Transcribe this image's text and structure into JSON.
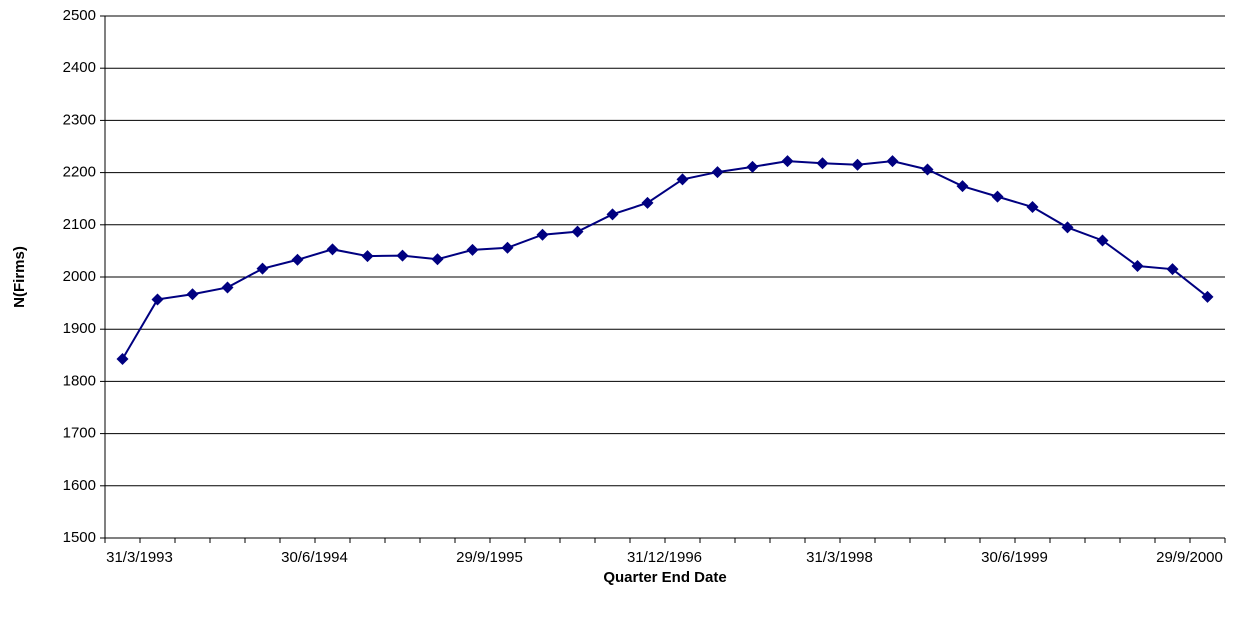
{
  "chart_data": {
    "type": "line",
    "x_label": "Quarter End Date",
    "y_label": "N(Firms)",
    "categories": [
      "31/3/1993",
      null,
      null,
      null,
      null,
      "30/6/1994",
      null,
      null,
      null,
      null,
      "29/9/1995",
      null,
      null,
      null,
      null,
      "31/12/1996",
      null,
      null,
      null,
      null,
      "31/3/1998",
      null,
      null,
      null,
      null,
      "30/6/1999",
      null,
      null,
      null,
      null,
      "29/9/2000",
      null
    ],
    "series": [
      {
        "name": "N(Firms)",
        "color": "#000080",
        "values": [
          1843,
          1957,
          1967,
          1980,
          2016,
          2033,
          2053,
          2040,
          2041,
          2034,
          2052,
          2056,
          2081,
          2087,
          2120,
          2142,
          2187,
          2201,
          2211,
          2222,
          2218,
          2215,
          2222,
          2206,
          2174,
          2154,
          2134,
          2095,
          2070,
          2021,
          2015,
          1962
        ]
      }
    ],
    "ylim": [
      1500,
      2500
    ],
    "yticks": [
      1500,
      1600,
      1700,
      1800,
      1900,
      2000,
      2100,
      2200,
      2300,
      2400,
      2500
    ],
    "grid": true
  }
}
